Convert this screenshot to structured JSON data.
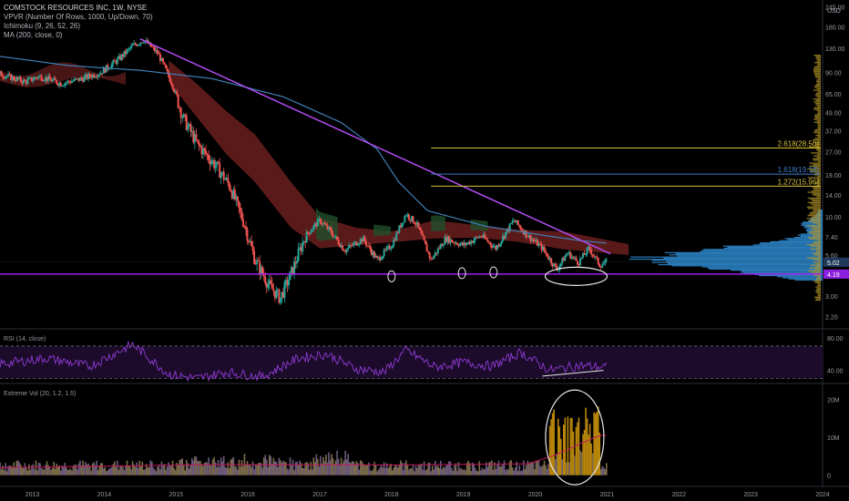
{
  "header": {
    "symbol_line": "COMSTOCK RESOURCES INC, 1W, NYSE",
    "indicators": [
      "VPVR (Number Of Rows, 1000, Up/Down, 70)",
      "Ichimoku (9, 26, 52, 26)",
      "MA (200, close, 0)"
    ]
  },
  "currency": "USD",
  "colors": {
    "background": "#000000",
    "candle_up": "#26a69a",
    "candle_down": "#ef5350",
    "trendline": "#b14cf2",
    "support": "#a020f0",
    "ma": "#3f7fb5",
    "cloud_bear": "#7a2323",
    "cloud_bull": "#1f4d2a",
    "fib_line": "#d9c33a",
    "fib_blue": "#3d7ec9",
    "vpvr": "#2f8fd8",
    "vpvr_sell": "#b89a2a",
    "rsi_line": "#8e3bd1",
    "rsi_band": "#1d0b2c"
  },
  "chart_data": [
    {
      "type": "candlestick",
      "title": "COMSTOCK RESOURCES INC, 1W, NYSE",
      "y_scale": "log",
      "x_ticks": [
        "2013",
        "2014",
        "2015",
        "2016",
        "2017",
        "2018",
        "2019",
        "2020",
        "2021",
        "2022",
        "2023",
        "2024"
      ],
      "x_domain": [
        2012.55,
        2024.0
      ],
      "y_ticks": [
        "245.00",
        "180.00",
        "130.00",
        "90.00",
        "65.00",
        "49.00",
        "37.00",
        "27.00",
        "19.00",
        "14.00",
        "10.00",
        "7.40",
        "5.60",
        "3.00",
        "2.20"
      ],
      "ylim": [
        1.9,
        245
      ],
      "last_price": "5.02",
      "support_price": "4.19",
      "price_anchors": [
        [
          2012.55,
          88
        ],
        [
          2012.9,
          78
        ],
        [
          2013.1,
          85
        ],
        [
          2013.4,
          76
        ],
        [
          2013.7,
          82
        ],
        [
          2013.95,
          90
        ],
        [
          2014.2,
          110
        ],
        [
          2014.4,
          135
        ],
        [
          2014.55,
          148
        ],
        [
          2014.75,
          120
        ],
        [
          2014.95,
          75
        ],
        [
          2015.1,
          45
        ],
        [
          2015.3,
          30
        ],
        [
          2015.55,
          22
        ],
        [
          2015.75,
          16
        ],
        [
          2015.95,
          9
        ],
        [
          2016.1,
          5.2
        ],
        [
          2016.3,
          3.5
        ],
        [
          2016.45,
          2.9
        ],
        [
          2016.6,
          4.2
        ],
        [
          2016.8,
          7.5
        ],
        [
          2017.0,
          9.5
        ],
        [
          2017.15,
          8
        ],
        [
          2017.35,
          6
        ],
        [
          2017.6,
          7.2
        ],
        [
          2017.8,
          5.2
        ],
        [
          2018.0,
          6.5
        ],
        [
          2018.2,
          10.5
        ],
        [
          2018.35,
          9
        ],
        [
          2018.55,
          5.2
        ],
        [
          2018.75,
          7.2
        ],
        [
          2019.0,
          6.5
        ],
        [
          2019.25,
          7.5
        ],
        [
          2019.45,
          6.2
        ],
        [
          2019.7,
          9.5
        ],
        [
          2019.9,
          7.5
        ],
        [
          2020.1,
          6.2
        ],
        [
          2020.3,
          4.5
        ],
        [
          2020.45,
          5.8
        ],
        [
          2020.6,
          5.0
        ],
        [
          2020.75,
          6.2
        ],
        [
          2020.9,
          4.8
        ],
        [
          2021.0,
          5.02
        ]
      ],
      "ma200": [
        [
          2012.55,
          115
        ],
        [
          2013.5,
          100
        ],
        [
          2014.5,
          93
        ],
        [
          2015.5,
          82
        ],
        [
          2016.5,
          62
        ],
        [
          2017.3,
          42
        ],
        [
          2017.8,
          28
        ],
        [
          2018.1,
          17
        ],
        [
          2018.5,
          11
        ],
        [
          2019.3,
          8.7
        ],
        [
          2020.0,
          7.7
        ],
        [
          2020.6,
          7.0
        ],
        [
          2021.0,
          6.7
        ]
      ],
      "cloud_top": [
        [
          2014.9,
          108
        ],
        [
          2015.3,
          75
        ],
        [
          2015.7,
          50
        ],
        [
          2016.1,
          35
        ],
        [
          2016.6,
          17
        ],
        [
          2017.0,
          10
        ],
        [
          2017.5,
          8.5
        ],
        [
          2018.0,
          8
        ],
        [
          2018.6,
          9.5
        ],
        [
          2019.2,
          8.8
        ],
        [
          2019.8,
          8.2
        ],
        [
          2020.4,
          8
        ],
        [
          2021.3,
          6.6
        ]
      ],
      "cloud_bottom": [
        [
          2014.9,
          78
        ],
        [
          2015.3,
          45
        ],
        [
          2015.7,
          26
        ],
        [
          2016.1,
          17
        ],
        [
          2016.6,
          8.5
        ],
        [
          2017.0,
          6.2
        ],
        [
          2017.5,
          6.5
        ],
        [
          2018.0,
          6.8
        ],
        [
          2018.6,
          7.2
        ],
        [
          2019.2,
          7.3
        ],
        [
          2019.8,
          6.8
        ],
        [
          2020.4,
          6.1
        ],
        [
          2021.3,
          5.6
        ]
      ],
      "trendline": [
        [
          2014.5,
          150
        ],
        [
          2021.05,
          5.7
        ]
      ],
      "fibonacci": [
        {
          "label": "2.618(28.50)",
          "price": 28.5,
          "color": "#d9c33a"
        },
        {
          "label": "1.618(19.19)",
          "price": 19.19,
          "color": "#3d7ec9"
        },
        {
          "label": "1.272(15.96)",
          "price": 15.96,
          "color": "#d9c33a"
        }
      ],
      "fib_x_start": 2018.55,
      "annotations": [
        "double bottom touches near 4.19 support",
        "circled consolidation 2020"
      ]
    },
    {
      "type": "line",
      "title": "RSI (14, close)",
      "ylim": [
        25,
        90
      ],
      "y_ticks": [
        "80.00",
        "40.00"
      ],
      "bands": [
        70,
        30
      ],
      "values_anchor": [
        [
          2012.55,
          48
        ],
        [
          2013.2,
          55
        ],
        [
          2013.8,
          45
        ],
        [
          2014.4,
          72
        ],
        [
          2014.9,
          35
        ],
        [
          2015.3,
          30
        ],
        [
          2015.7,
          38
        ],
        [
          2016.2,
          32
        ],
        [
          2016.7,
          55
        ],
        [
          2017.1,
          60
        ],
        [
          2017.5,
          42
        ],
        [
          2017.9,
          38
        ],
        [
          2018.2,
          65
        ],
        [
          2018.6,
          44
        ],
        [
          2019.0,
          50
        ],
        [
          2019.4,
          45
        ],
        [
          2019.8,
          62
        ],
        [
          2020.2,
          40
        ],
        [
          2020.6,
          46
        ],
        [
          2021.0,
          44
        ]
      ],
      "trend_segment": [
        [
          2020.1,
          33
        ],
        [
          2020.95,
          40
        ]
      ]
    },
    {
      "type": "bar",
      "title": "Extreme Vol (20, 1.2, 1.5)",
      "ylim": [
        -2,
        24
      ],
      "y_ticks": [
        "20M",
        "10M",
        "0"
      ],
      "unit": "M",
      "spike_region": [
        2020.2,
        2020.9
      ],
      "avg_line": [
        [
          2012.55,
          2.0
        ],
        [
          2015.5,
          2.8
        ],
        [
          2018.0,
          2.7
        ],
        [
          2019.9,
          3.0
        ],
        [
          2020.3,
          5.5
        ],
        [
          2020.65,
          8.5
        ],
        [
          2020.9,
          10.5
        ]
      ]
    }
  ]
}
